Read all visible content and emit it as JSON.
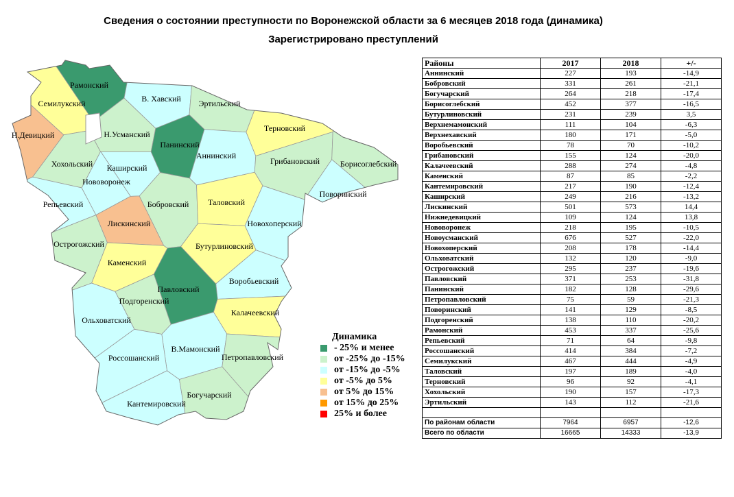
{
  "header": {
    "title": "Сведения о состоянии преступности по Воронежской области  за 6 месяцев 2018 года (динамика)",
    "subtitle": "Зарегистрировано преступлений"
  },
  "map": {
    "regions": [
      {
        "name": "Рамонский",
        "color": "#3a9a6e"
      },
      {
        "name": "Семилукский",
        "color": "#ffff99"
      },
      {
        "name": "Н.Девицкий",
        "color": "#f8c090"
      },
      {
        "name": "В. Хавский",
        "color": "#ccffff"
      },
      {
        "name": "Эртильский",
        "color": "#ccf2cc"
      },
      {
        "name": "Н.Усманский",
        "color": "#ccf2cc"
      },
      {
        "name": "Панинский",
        "color": "#3a9a6e"
      },
      {
        "name": "Хохольский",
        "color": "#ccf2cc"
      },
      {
        "name": "Каширский",
        "color": "#ccffff"
      },
      {
        "name": "Аннинский",
        "color": "#ccffff"
      },
      {
        "name": "Терновский",
        "color": "#ffff99"
      },
      {
        "name": "Грибановский",
        "color": "#ccf2cc"
      },
      {
        "name": "Борисоглебский",
        "color": "#ccf2cc"
      },
      {
        "name": "Нововоронеж",
        "color": "#ccffff"
      },
      {
        "name": "Репьевский",
        "color": "#ccffff"
      },
      {
        "name": "Лискинский",
        "color": "#f8c090"
      },
      {
        "name": "Бобровский",
        "color": "#ccf2cc"
      },
      {
        "name": "Таловский",
        "color": "#ffff99"
      },
      {
        "name": "Поворинский",
        "color": "#ccffff"
      },
      {
        "name": "Новохоперский",
        "color": "#ccffff"
      },
      {
        "name": "Острогожский",
        "color": "#ccf2cc"
      },
      {
        "name": "Бутурлиновский",
        "color": "#ffff99"
      },
      {
        "name": "Каменский",
        "color": "#ffff99"
      },
      {
        "name": "Воробьевский",
        "color": "#ccffff"
      },
      {
        "name": "Павловский",
        "color": "#3a9a6e"
      },
      {
        "name": "Подгоренский",
        "color": "#ccf2cc"
      },
      {
        "name": "Калачеевский",
        "color": "#ffff99"
      },
      {
        "name": "Ольховатский",
        "color": "#ccffff"
      },
      {
        "name": "В.Мамонский",
        "color": "#ccffff"
      },
      {
        "name": "Россошанский",
        "color": "#ccffff"
      },
      {
        "name": "Петропавловский",
        "color": "#ccf2cc"
      },
      {
        "name": "Кантемировский",
        "color": "#ccffff"
      },
      {
        "name": "Богучарский",
        "color": "#ccf2cc"
      }
    ]
  },
  "legend": {
    "title": "Динамика",
    "items": [
      {
        "label": "- 25% и менее",
        "color": "#3a9a6e"
      },
      {
        "label": "от -25% до -15%",
        "color": "#ccf2cc"
      },
      {
        "label": "от -15% до -5%",
        "color": "#ccffff"
      },
      {
        "label": "от -5% до 5%",
        "color": "#ffff99"
      },
      {
        "label": "от 5% до 15%",
        "color": "#f8c090"
      },
      {
        "label": "от 15% до 25%",
        "color": "#ff9900"
      },
      {
        "label": "25% и более",
        "color": "#ff0000"
      }
    ]
  },
  "table": {
    "header": [
      "Районы",
      "2017",
      "2018",
      "+/-"
    ],
    "rows": [
      [
        "Аннинский",
        "227",
        "193",
        "-14,9"
      ],
      [
        "Бобровский",
        "331",
        "261",
        "-21,1"
      ],
      [
        "Богучарский",
        "264",
        "218",
        "-17,4"
      ],
      [
        "Борисоглебский",
        "452",
        "377",
        "-16,5"
      ],
      [
        "Бутурлиновский",
        "231",
        "239",
        "3,5"
      ],
      [
        "Верхнемамонский",
        "111",
        "104",
        "-6,3"
      ],
      [
        "Верхнехавский",
        "180",
        "171",
        "-5,0"
      ],
      [
        "Воробьевский",
        "78",
        "70",
        "-10,2"
      ],
      [
        "Грибановский",
        "155",
        "124",
        "-20,0"
      ],
      [
        "Калачеевский",
        "288",
        "274",
        "-4,8"
      ],
      [
        "Каменский",
        "87",
        "85",
        "-2,2"
      ],
      [
        "Кантемировский",
        "217",
        "190",
        "-12,4"
      ],
      [
        "Каширский",
        "249",
        "216",
        "-13,2"
      ],
      [
        "Лискинский",
        "501",
        "573",
        "14,4"
      ],
      [
        "Нижнедевицкий",
        "109",
        "124",
        "13,8"
      ],
      [
        "Нововоронеж",
        "218",
        "195",
        "-10,5"
      ],
      [
        "Новоусманский",
        "676",
        "527",
        "-22,0"
      ],
      [
        "Новохоперский",
        "208",
        "178",
        "-14,4"
      ],
      [
        "Ольховатский",
        "132",
        "120",
        "-9,0"
      ],
      [
        "Острогожский",
        "295",
        "237",
        "-19,6"
      ],
      [
        "Павловский",
        "371",
        "253",
        "-31,8"
      ],
      [
        "Панинский",
        "182",
        "128",
        "-29,6"
      ],
      [
        "Петропавловский",
        "75",
        "59",
        "-21,3"
      ],
      [
        "Поворинский",
        "141",
        "129",
        "-8,5"
      ],
      [
        "Подгоренский",
        "138",
        "110",
        "-20,2"
      ],
      [
        "Рамонский",
        "453",
        "337",
        "-25,6"
      ],
      [
        "Репьевский",
        "71",
        "64",
        "-9,8"
      ],
      [
        "Россошанский",
        "414",
        "384",
        "-7,2"
      ],
      [
        "Семилукский",
        "467",
        "444",
        "-4,9"
      ],
      [
        "Таловский",
        "197",
        "189",
        "-4,0"
      ],
      [
        "Терновский",
        "96",
        "92",
        "-4,1"
      ],
      [
        "Хохольский",
        "190",
        "157",
        "-17,3"
      ],
      [
        "Эртильский",
        "143",
        "112",
        "-21,6"
      ]
    ],
    "totals": [
      [
        "По районам области",
        "7964",
        "6957",
        "-12,6"
      ],
      [
        "Всего по области",
        "16665",
        "14333",
        "-13,9"
      ]
    ]
  }
}
